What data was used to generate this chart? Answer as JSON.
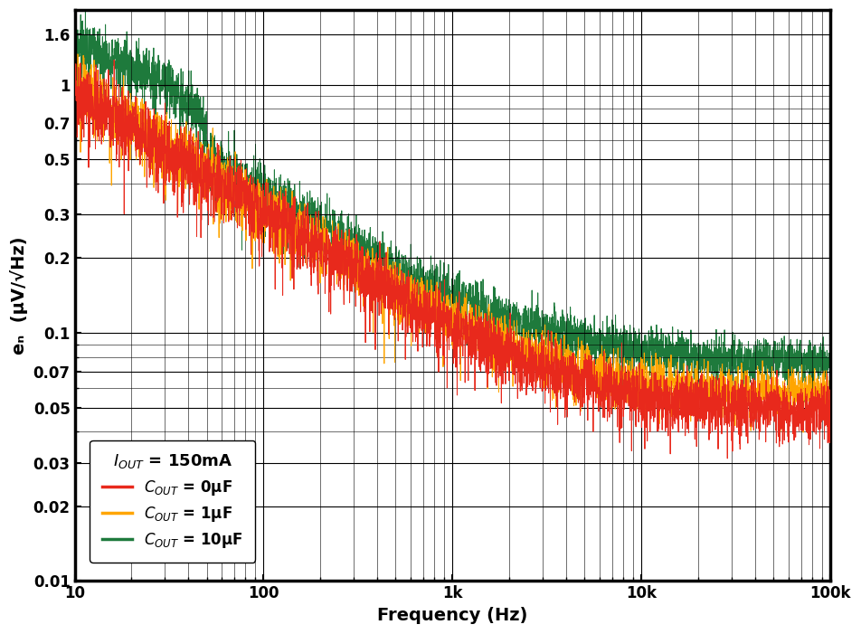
{
  "xlabel": "Frequency (Hz)",
  "ylabel": "eₙ  (µV/√Hz)",
  "xlim": [
    10,
    100000
  ],
  "ylim": [
    0.01,
    2.0
  ],
  "colors": {
    "red": "#E8291C",
    "orange": "#FFA500",
    "green": "#1E7A3C"
  },
  "legend_entries": [
    {
      "label": "$C_{OUT}$ = 0µF",
      "color": "#E8291C"
    },
    {
      "label": "$C_{OUT}$ = 1µF",
      "color": "#FFA500"
    },
    {
      "label": "$C_{OUT}$ = 10µF",
      "color": "#1E7A3C"
    }
  ],
  "background_color": "#ffffff",
  "grid_color": "#000000",
  "linewidth": 0.7,
  "y_major_ticks": [
    0.01,
    0.02,
    0.03,
    0.05,
    0.07,
    0.1,
    0.2,
    0.3,
    0.5,
    0.7,
    1.0,
    1.6
  ],
  "y_tick_labels": [
    "0.01",
    "0.02",
    "0.03",
    "0.05",
    "0.07",
    "0.1",
    "0.2",
    "0.3",
    "0.5",
    "0.7",
    "1",
    "1.6"
  ]
}
